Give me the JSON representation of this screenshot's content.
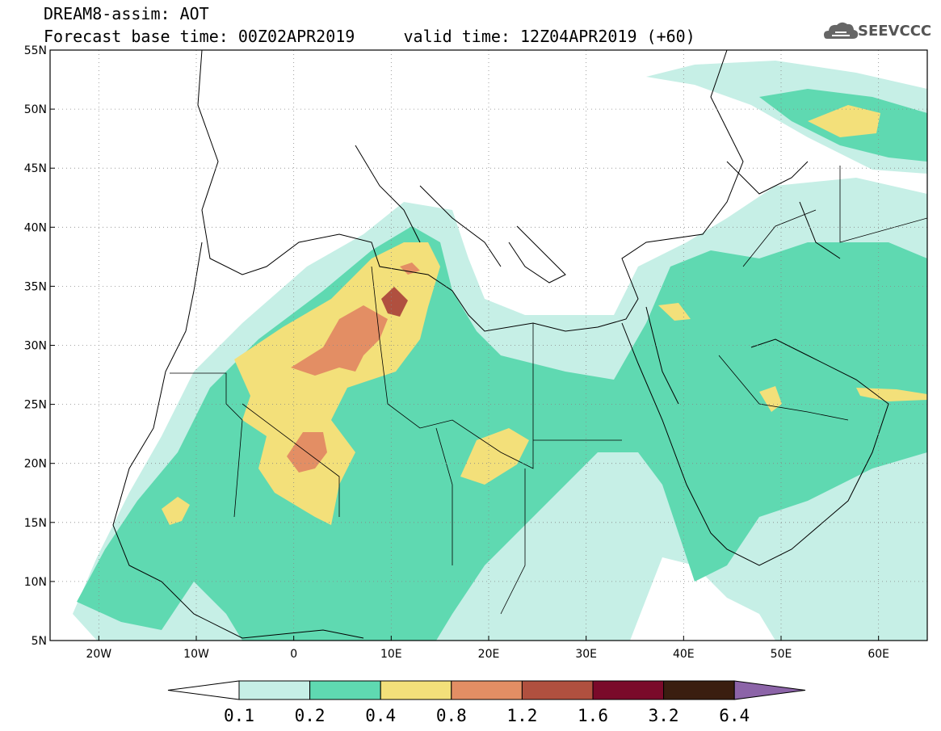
{
  "header": {
    "title": "DREAM8-assim: AOT",
    "subtitle": "Forecast base time: 00Z02APR2019     valid time: 12Z04APR2019 (+60)"
  },
  "logo": {
    "icon": "cloud-icon",
    "text": "SEEVCCC"
  },
  "map": {
    "lat_labels": [
      "55N",
      "50N",
      "45N",
      "40N",
      "35N",
      "30N",
      "25N",
      "20N",
      "15N",
      "10N",
      "5N"
    ],
    "lon_labels": [
      "20W",
      "10W",
      "0",
      "10E",
      "20E",
      "30E",
      "40E",
      "50E",
      "60E"
    ],
    "lat_range": [
      5,
      55
    ],
    "lon_range": [
      -25,
      65
    ],
    "grid": "dotted",
    "variable": "AOT"
  },
  "colorbar": {
    "labels": [
      "0.1",
      "0.2",
      "0.4",
      "0.8",
      "1.2",
      "1.6",
      "3.2",
      "6.4"
    ],
    "colors": [
      "#ffffff",
      "#c6efe6",
      "#5fd9b1",
      "#f3e07a",
      "#e38e64",
      "#b0503f",
      "#7a0a2a",
      "#3a1e10",
      "#8c64a8"
    ]
  }
}
